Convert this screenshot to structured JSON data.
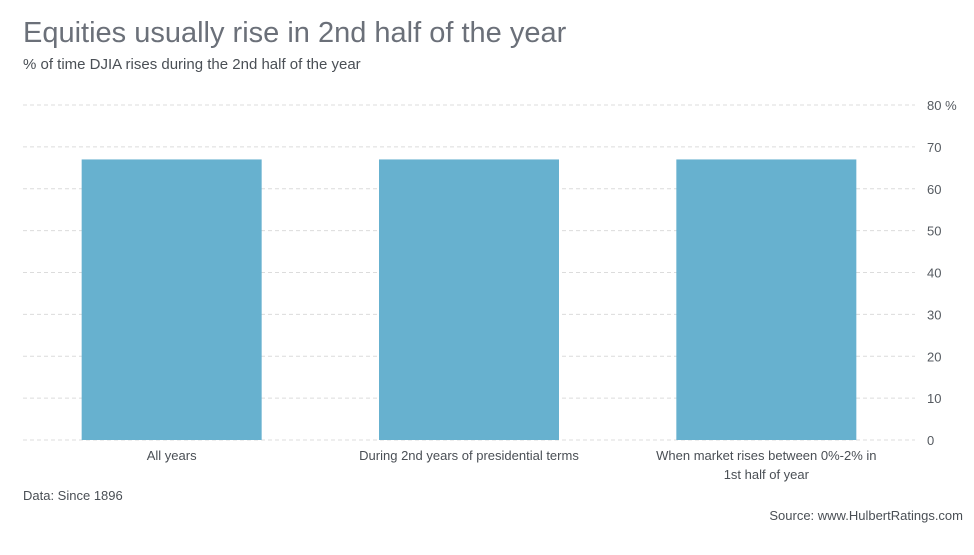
{
  "chart_data": {
    "type": "bar",
    "title": "Equities usually rise in 2nd half of the year",
    "subtitle": "% of time DJIA rises during the 2nd half of the year",
    "categories": [
      [
        "All years"
      ],
      [
        "During 2nd years of presidential terms"
      ],
      [
        "When market rises between 0%-2% in",
        "1st half of year"
      ]
    ],
    "values": [
      67,
      67,
      67
    ],
    "ylim": [
      0,
      80
    ],
    "yticks": [
      0,
      10,
      20,
      30,
      40,
      50,
      60,
      70,
      80
    ],
    "ytick_labels": [
      "0",
      "10",
      "20",
      "30",
      "40",
      "50",
      "60",
      "70",
      "80 %"
    ],
    "y_axis_side": "right",
    "grid": true,
    "bar_color": "#67b1cf",
    "note": "Data: Since 1896",
    "source": "Source: www.HulbertRatings.com"
  }
}
